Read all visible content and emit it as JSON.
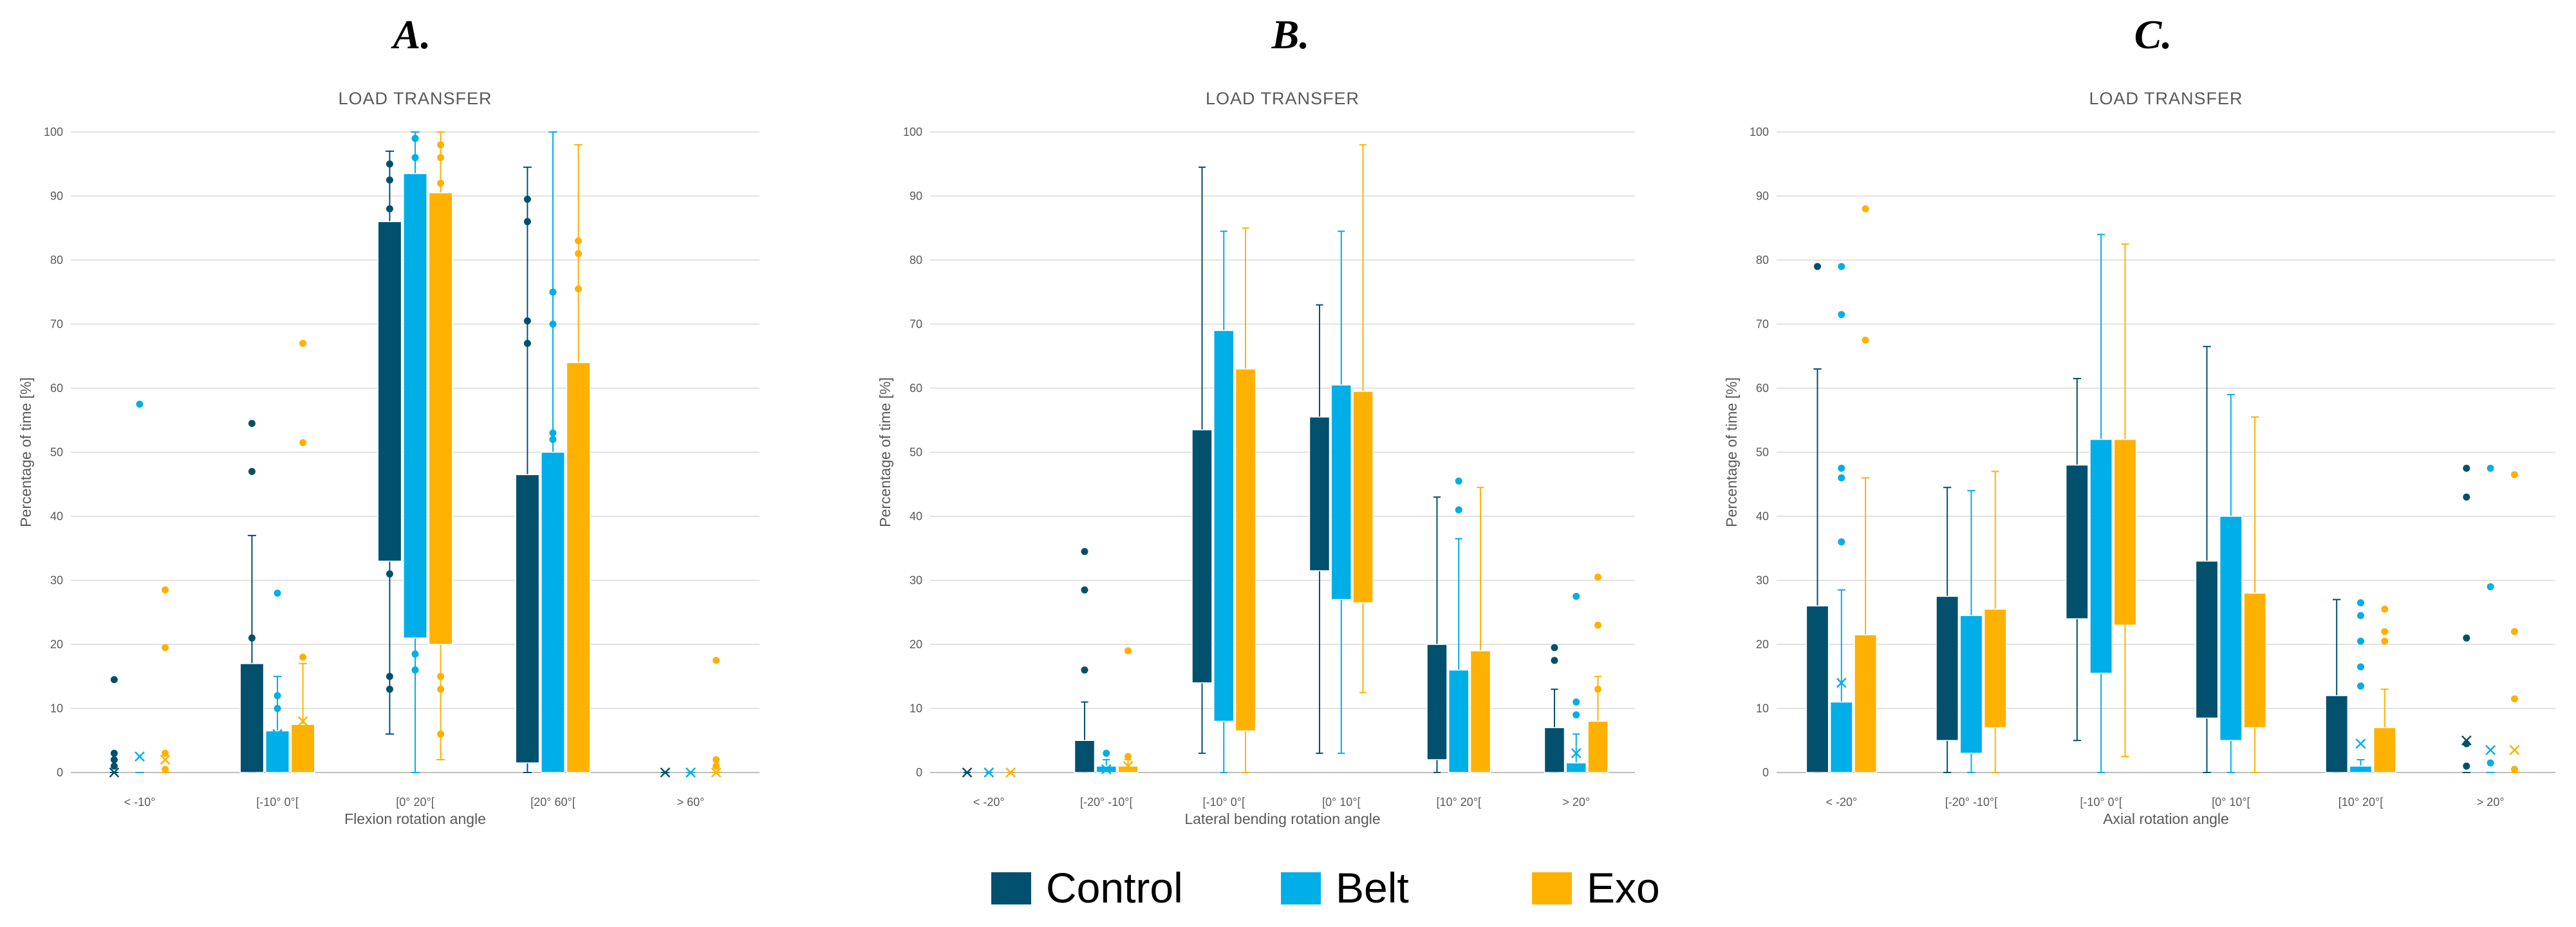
{
  "legend": [
    {
      "name": "Control",
      "color": "#00506e"
    },
    {
      "name": "Belt",
      "color": "#00aee8"
    },
    {
      "name": "Exo",
      "color": "#ffb100"
    }
  ],
  "chart_data": [
    {
      "type": "box",
      "panel": "A.",
      "title": "LOAD TRANSFER",
      "xlabel": "Flexion rotation angle",
      "ylabel": "Percentage of time [%]",
      "ylim": [
        0,
        100
      ],
      "yticks": [
        0,
        10,
        20,
        30,
        40,
        50,
        60,
        70,
        80,
        90,
        100
      ],
      "grid": true,
      "categories": [
        "< -10°",
        "[-10° 0°[",
        "[0° 20°[",
        "[20° 60°[",
        "> 60°"
      ],
      "series": [
        {
          "name": "Control",
          "boxes": [
            {
              "whisker_low": 0,
              "q1": 0,
              "q3": 0,
              "whisker_high": 0,
              "mean": 0,
              "outliers": [
                1,
                2,
                3,
                14.5
              ]
            },
            {
              "whisker_low": 0,
              "q1": 0,
              "q3": 17,
              "whisker_high": 37,
              "mean": 6,
              "outliers": [
                21,
                47,
                54.5
              ]
            },
            {
              "whisker_low": 6,
              "q1": 33,
              "q3": 86,
              "whisker_high": 97,
              "mean": 55,
              "outliers": [
                13,
                15,
                31,
                88,
                92.5,
                95
              ]
            },
            {
              "whisker_low": 0,
              "q1": 1.5,
              "q3": 46.5,
              "whisker_high": 94.5,
              "mean": 30,
              "outliers": [
                67,
                70.5,
                86,
                89.5
              ]
            },
            {
              "whisker_low": 0,
              "q1": 0,
              "q3": 0,
              "whisker_high": 0,
              "mean": 0,
              "outliers": []
            }
          ]
        },
        {
          "name": "Belt",
          "boxes": [
            {
              "whisker_low": 0,
              "q1": 0,
              "q3": 0,
              "whisker_high": 0,
              "mean": 2.5,
              "outliers": [
                57.5
              ]
            },
            {
              "whisker_low": 0,
              "q1": 0,
              "q3": 6.5,
              "whisker_high": 15,
              "mean": 6,
              "outliers": [
                10,
                12,
                28
              ]
            },
            {
              "whisker_low": 0,
              "q1": 21,
              "q3": 93.5,
              "whisker_high": 100,
              "mean": 60,
              "outliers": [
                16,
                18.5,
                96,
                99
              ]
            },
            {
              "whisker_low": 0,
              "q1": 0,
              "q3": 50,
              "whisker_high": 100,
              "mean": 30,
              "outliers": [
                52,
                53,
                70,
                75
              ]
            },
            {
              "whisker_low": 0,
              "q1": 0,
              "q3": 0,
              "whisker_high": 0,
              "mean": 0,
              "outliers": []
            }
          ]
        },
        {
          "name": "Exo",
          "boxes": [
            {
              "whisker_low": 0,
              "q1": 0,
              "q3": 0,
              "whisker_high": 0,
              "mean": 2,
              "outliers": [
                0.5,
                3,
                19.5,
                28.5
              ]
            },
            {
              "whisker_low": 0,
              "q1": 0,
              "q3": 7.5,
              "whisker_high": 17,
              "mean": 8,
              "outliers": [
                18,
                51.5,
                67
              ]
            },
            {
              "whisker_low": 2,
              "q1": 20,
              "q3": 90.5,
              "whisker_high": 100,
              "mean": 60,
              "outliers": [
                6,
                13,
                15,
                92,
                96,
                98
              ]
            },
            {
              "whisker_low": 0,
              "q1": 0,
              "q3": 64,
              "whisker_high": 98,
              "mean": 40,
              "outliers": [
                75.5,
                81,
                83
              ]
            },
            {
              "whisker_low": 0,
              "q1": 0,
              "q3": 0,
              "whisker_high": 0,
              "mean": 0,
              "outliers": [
                1,
                2,
                17.5
              ]
            }
          ]
        }
      ]
    },
    {
      "type": "box",
      "panel": "B.",
      "title": "LOAD TRANSFER",
      "xlabel": "Lateral bending rotation angle",
      "ylabel": "Percentage of time [%]",
      "ylim": [
        0,
        100
      ],
      "yticks": [
        0,
        10,
        20,
        30,
        40,
        50,
        60,
        70,
        80,
        90,
        100
      ],
      "grid": true,
      "categories": [
        "< -20°",
        "[-20° -10°[",
        "[-10° 0°[",
        "[0°  10°[",
        "[10° 20°[",
        "> 20°"
      ],
      "series": [
        {
          "name": "Control",
          "boxes": [
            {
              "whisker_low": 0,
              "q1": 0,
              "q3": 0,
              "whisker_high": 0,
              "mean": 0,
              "outliers": []
            },
            {
              "whisker_low": 0,
              "q1": 0,
              "q3": 5,
              "whisker_high": 11,
              "mean": 3,
              "outliers": [
                16,
                28.5,
                34.5
              ]
            },
            {
              "whisker_low": 3,
              "q1": 14,
              "q3": 53.5,
              "whisker_high": 94.5,
              "mean": 35,
              "outliers": []
            },
            {
              "whisker_low": 3,
              "q1": 31.5,
              "q3": 55.5,
              "whisker_high": 73,
              "mean": 45,
              "outliers": []
            },
            {
              "whisker_low": 0,
              "q1": 2,
              "q3": 20,
              "whisker_high": 43,
              "mean": 12,
              "outliers": []
            },
            {
              "whisker_low": 0,
              "q1": 0,
              "q3": 7,
              "whisker_high": 13,
              "mean": 5,
              "outliers": [
                17.5,
                19.5
              ]
            }
          ]
        },
        {
          "name": "Belt",
          "boxes": [
            {
              "whisker_low": 0,
              "q1": 0,
              "q3": 0,
              "whisker_high": 0,
              "mean": 0,
              "outliers": []
            },
            {
              "whisker_low": 0,
              "q1": 0,
              "q3": 1,
              "whisker_high": 2,
              "mean": 0.5,
              "outliers": [
                3
              ]
            },
            {
              "whisker_low": 0,
              "q1": 8,
              "q3": 69,
              "whisker_high": 84.5,
              "mean": 38,
              "outliers": []
            },
            {
              "whisker_low": 3,
              "q1": 27,
              "q3": 60.5,
              "whisker_high": 84.5,
              "mean": 43,
              "outliers": []
            },
            {
              "whisker_low": 0,
              "q1": 0,
              "q3": 16,
              "whisker_high": 36.5,
              "mean": 10,
              "outliers": [
                41,
                45.5
              ]
            },
            {
              "whisker_low": 0,
              "q1": 0,
              "q3": 1.5,
              "whisker_high": 6,
              "mean": 3,
              "outliers": [
                9,
                11,
                27.5
              ]
            }
          ]
        },
        {
          "name": "Exo",
          "boxes": [
            {
              "whisker_low": 0,
              "q1": 0,
              "q3": 0,
              "whisker_high": 0,
              "mean": 0,
              "outliers": []
            },
            {
              "whisker_low": 0,
              "q1": 0,
              "q3": 1,
              "whisker_high": 2,
              "mean": 1,
              "outliers": [
                2.5,
                19
              ]
            },
            {
              "whisker_low": 0,
              "q1": 6.5,
              "q3": 63,
              "whisker_high": 85,
              "mean": 35,
              "outliers": []
            },
            {
              "whisker_low": 12.5,
              "q1": 26.5,
              "q3": 59.5,
              "whisker_high": 98,
              "mean": 43,
              "outliers": []
            },
            {
              "whisker_low": 0,
              "q1": 0,
              "q3": 19,
              "whisker_high": 44.5,
              "mean": 10,
              "outliers": []
            },
            {
              "whisker_low": 0,
              "q1": 0,
              "q3": 8,
              "whisker_high": 15,
              "mean": 5,
              "outliers": [
                13,
                23,
                30.5
              ]
            }
          ]
        }
      ]
    },
    {
      "type": "box",
      "panel": "C.",
      "title": "LOAD TRANSFER",
      "xlabel": "Axial rotation angle",
      "ylabel": "Percentage of time [%]",
      "ylim": [
        0,
        100
      ],
      "yticks": [
        0,
        10,
        20,
        30,
        40,
        50,
        60,
        70,
        80,
        90,
        100
      ],
      "grid": true,
      "categories": [
        "< -20°",
        "[-20° -10°[",
        "[-10° 0°[",
        "[0°  10°[",
        "[10° 20°[",
        "> 20°"
      ],
      "series": [
        {
          "name": "Control",
          "boxes": [
            {
              "whisker_low": 0,
              "q1": 0,
              "q3": 26,
              "whisker_high": 63,
              "mean": 20,
              "outliers": [
                79
              ]
            },
            {
              "whisker_low": 0,
              "q1": 5,
              "q3": 27.5,
              "whisker_high": 44.5,
              "mean": 18,
              "outliers": []
            },
            {
              "whisker_low": 5,
              "q1": 24,
              "q3": 48,
              "whisker_high": 61.5,
              "mean": 36,
              "outliers": []
            },
            {
              "whisker_low": 0,
              "q1": 8.5,
              "q3": 33,
              "whisker_high": 66.5,
              "mean": 22,
              "outliers": []
            },
            {
              "whisker_low": 0,
              "q1": 0,
              "q3": 12,
              "whisker_high": 27,
              "mean": 6,
              "outliers": []
            },
            {
              "whisker_low": 0,
              "q1": 0,
              "q3": 0,
              "whisker_high": 0,
              "mean": 5,
              "outliers": [
                1,
                4.5,
                21,
                43,
                47.5
              ]
            }
          ]
        },
        {
          "name": "Belt",
          "boxes": [
            {
              "whisker_low": 0,
              "q1": 0,
              "q3": 11,
              "whisker_high": 28.5,
              "mean": 14,
              "outliers": [
                36,
                46,
                47.5,
                71.5,
                79
              ]
            },
            {
              "whisker_low": 0,
              "q1": 3,
              "q3": 24.5,
              "whisker_high": 44,
              "mean": 15,
              "outliers": []
            },
            {
              "whisker_low": 0,
              "q1": 15.5,
              "q3": 52,
              "whisker_high": 84,
              "mean": 35,
              "outliers": []
            },
            {
              "whisker_low": 0,
              "q1": 5,
              "q3": 40,
              "whisker_high": 59,
              "mean": 20,
              "outliers": []
            },
            {
              "whisker_low": 0,
              "q1": 0,
              "q3": 1,
              "whisker_high": 2,
              "mean": 4.5,
              "outliers": [
                13.5,
                16.5,
                20.5,
                24.5,
                26.5
              ]
            },
            {
              "whisker_low": 0,
              "q1": 0,
              "q3": 0,
              "whisker_high": 0,
              "mean": 3.5,
              "outliers": [
                1.5,
                29,
                47.5
              ]
            }
          ]
        },
        {
          "name": "Exo",
          "boxes": [
            {
              "whisker_low": 0,
              "q1": 0,
              "q3": 21.5,
              "whisker_high": 46,
              "mean": 18,
              "outliers": [
                67.5,
                88
              ]
            },
            {
              "whisker_low": 0,
              "q1": 7,
              "q3": 25.5,
              "whisker_high": 47,
              "mean": 17,
              "outliers": []
            },
            {
              "whisker_low": 2.5,
              "q1": 23,
              "q3": 52,
              "whisker_high": 82.5,
              "mean": 36,
              "outliers": []
            },
            {
              "whisker_low": 0,
              "q1": 7,
              "q3": 28,
              "whisker_high": 55.5,
              "mean": 18,
              "outliers": []
            },
            {
              "whisker_low": 0,
              "q1": 0,
              "q3": 7,
              "whisker_high": 13,
              "mean": 4,
              "outliers": [
                20.5,
                22,
                25.5
              ]
            },
            {
              "whisker_low": 0,
              "q1": 0,
              "q3": 0,
              "whisker_high": 0,
              "mean": 3.5,
              "outliers": [
                0.5,
                11.5,
                22,
                46.5
              ]
            }
          ]
        }
      ]
    }
  ]
}
